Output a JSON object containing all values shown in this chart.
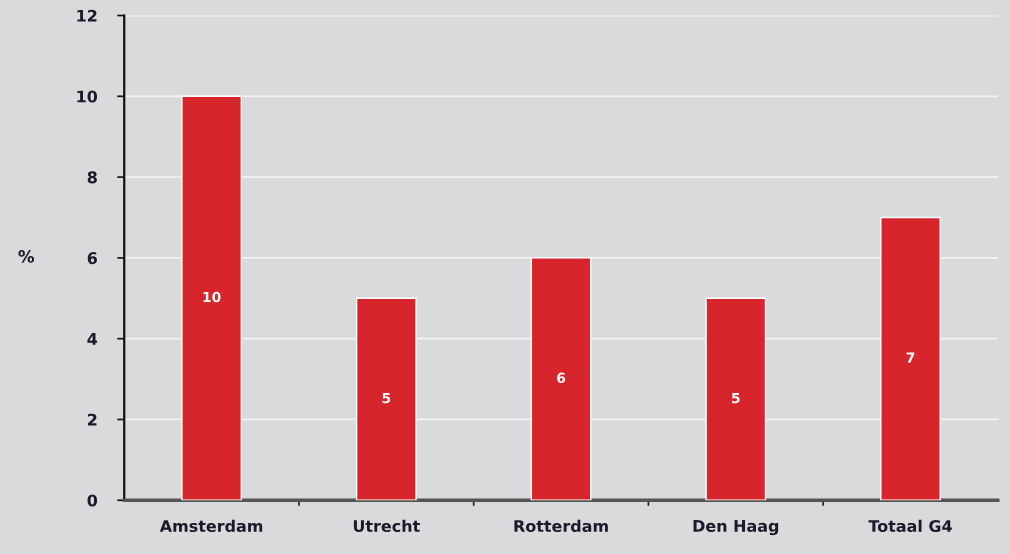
{
  "chart_data": {
    "type": "bar",
    "ylabel": "%",
    "categories": [
      "Amsterdam",
      "Utrecht",
      "Rotterdam",
      "Den Haag",
      "Totaal G4"
    ],
    "values": [
      10,
      5,
      6,
      5,
      7
    ],
    "color": "#d7262b",
    "ylim": [
      0,
      12
    ],
    "yticks": [
      0,
      2,
      4,
      6,
      8,
      10,
      12
    ],
    "grid": "y",
    "data_labels": true
  }
}
